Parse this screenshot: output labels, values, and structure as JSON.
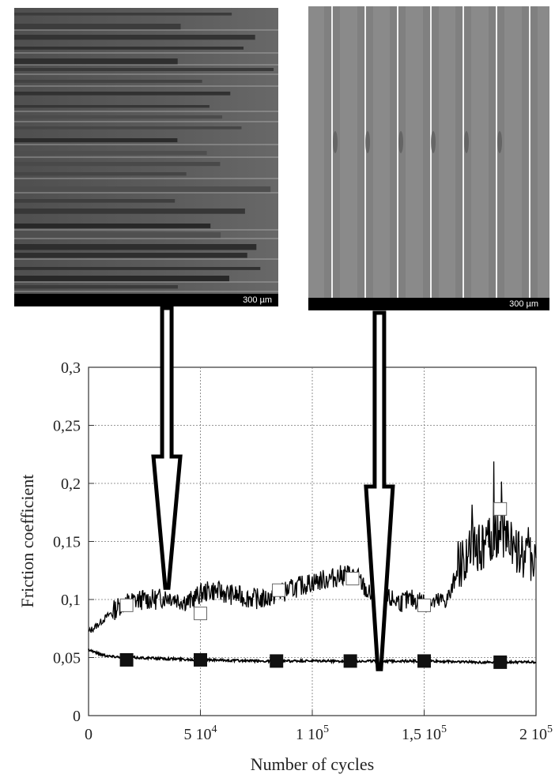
{
  "micrographs": [
    {
      "name": "untreated-surface",
      "scale_label": "300 µm"
    },
    {
      "name": "treated-surface",
      "scale_label": "300 µm"
    }
  ],
  "chart_data": {
    "type": "line",
    "xlabel": "Number of cycles",
    "ylabel": "Friction coefficient",
    "xlim": [
      0,
      200000
    ],
    "ylim": [
      0,
      0.3
    ],
    "x_ticks": [
      {
        "value": 0,
        "label": "0"
      },
      {
        "value": 50000,
        "label": "5 10",
        "exp": "4"
      },
      {
        "value": 100000,
        "label": "1 10",
        "exp": "5"
      },
      {
        "value": 150000,
        "label": "1,5 10",
        "exp": "5"
      },
      {
        "value": 200000,
        "label": "2 10",
        "exp": "5"
      }
    ],
    "y_ticks": [
      {
        "value": 0,
        "label": "0"
      },
      {
        "value": 0.05,
        "label": "0,05"
      },
      {
        "value": 0.1,
        "label": "0,1"
      },
      {
        "value": 0.15,
        "label": "0,15"
      },
      {
        "value": 0.2,
        "label": "0,2"
      },
      {
        "value": 0.25,
        "label": "0,25"
      },
      {
        "value": 0.3,
        "label": "0,3"
      }
    ],
    "grid": true,
    "series": [
      {
        "marker": "open-square",
        "color": "#000000",
        "line": [
          [
            0,
            0.072
          ],
          [
            4000,
            0.078
          ],
          [
            8000,
            0.085
          ],
          [
            11000,
            0.09
          ],
          [
            14000,
            0.095
          ],
          [
            18000,
            0.098
          ],
          [
            24000,
            0.1
          ],
          [
            30000,
            0.1
          ],
          [
            36000,
            0.103
          ],
          [
            40000,
            0.1
          ],
          [
            45000,
            0.098
          ],
          [
            50000,
            0.105
          ],
          [
            55000,
            0.108
          ],
          [
            62000,
            0.105
          ],
          [
            70000,
            0.102
          ],
          [
            78000,
            0.1
          ],
          [
            85000,
            0.105
          ],
          [
            92000,
            0.11
          ],
          [
            100000,
            0.115
          ],
          [
            108000,
            0.118
          ],
          [
            115000,
            0.122
          ],
          [
            120000,
            0.12
          ],
          [
            125000,
            0.105
          ],
          [
            130000,
            0.1
          ],
          [
            135000,
            0.1
          ],
          [
            140000,
            0.098
          ],
          [
            145000,
            0.1
          ],
          [
            150000,
            0.098
          ],
          [
            155000,
            0.097
          ],
          [
            160000,
            0.1
          ],
          [
            162000,
            0.105
          ],
          [
            165000,
            0.13
          ],
          [
            170000,
            0.14
          ],
          [
            175000,
            0.145
          ],
          [
            180000,
            0.15
          ],
          [
            185000,
            0.16
          ],
          [
            190000,
            0.145
          ],
          [
            195000,
            0.135
          ],
          [
            200000,
            0.14
          ]
        ],
        "markers": [
          [
            17000,
            0.095
          ],
          [
            50000,
            0.088
          ],
          [
            85000,
            0.108
          ],
          [
            118000,
            0.118
          ],
          [
            150000,
            0.095
          ],
          [
            184000,
            0.178
          ]
        ]
      },
      {
        "marker": "filled-square",
        "color": "#000000",
        "line": [
          [
            0,
            0.057
          ],
          [
            5000,
            0.053
          ],
          [
            10000,
            0.051
          ],
          [
            20000,
            0.05
          ],
          [
            35000,
            0.049
          ],
          [
            50000,
            0.048
          ],
          [
            75000,
            0.047
          ],
          [
            100000,
            0.047
          ],
          [
            125000,
            0.047
          ],
          [
            150000,
            0.047
          ],
          [
            175000,
            0.046
          ],
          [
            200000,
            0.046
          ]
        ],
        "markers": [
          [
            17000,
            0.048
          ],
          [
            50000,
            0.048
          ],
          [
            84000,
            0.047
          ],
          [
            117000,
            0.047
          ],
          [
            150000,
            0.047
          ],
          [
            184000,
            0.046
          ]
        ]
      }
    ],
    "arrows": [
      {
        "from": "untreated-surface",
        "x": 35000,
        "tip_y": 0.11
      },
      {
        "from": "treated-surface",
        "x": 130000,
        "tip_y": 0.04
      }
    ]
  }
}
